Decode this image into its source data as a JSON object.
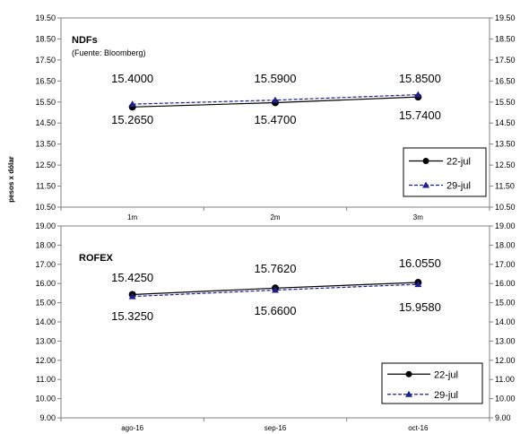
{
  "ylabel": "pesos x dólar",
  "chart_data": [
    {
      "type": "line",
      "title": "NDFs",
      "subtitle": "(Fuente: Bloomberg)",
      "categories": [
        "1m",
        "2m",
        "3m"
      ],
      "ylim": [
        10.5,
        19.5
      ],
      "yticks": [
        "10.50",
        "11.50",
        "12.50",
        "13.50",
        "14.50",
        "15.50",
        "16.50",
        "17.50",
        "18.50",
        "19.50"
      ],
      "grid": false,
      "legend": "bottom-right",
      "series": [
        {
          "name": "22-jul",
          "values": [
            15.265,
            15.47,
            15.74
          ],
          "labels": [
            "15.2650",
            "15.4700",
            "15.7400"
          ],
          "color": "#000000",
          "marker": "circle",
          "dash": "solid"
        },
        {
          "name": "29-jul",
          "values": [
            15.4,
            15.59,
            15.85
          ],
          "labels": [
            "15.4000",
            "15.5900",
            "15.8500"
          ],
          "color": "#1f1f8f",
          "marker": "triangle",
          "dash": "dashed"
        }
      ]
    },
    {
      "type": "line",
      "title": "ROFEX",
      "categories": [
        "ago-16",
        "sep-16",
        "oct-16"
      ],
      "ylim": [
        9.0,
        19.0
      ],
      "yticks": [
        "9.00",
        "10.00",
        "11.00",
        "12.00",
        "13.00",
        "14.00",
        "15.00",
        "16.00",
        "17.00",
        "18.00",
        "19.00"
      ],
      "grid": false,
      "legend": "bottom-right",
      "series": [
        {
          "name": "22-jul",
          "values": [
            15.425,
            15.762,
            16.055
          ],
          "labels": [
            "15.4250",
            "15.7620",
            "16.0550"
          ],
          "color": "#000000",
          "marker": "circle",
          "dash": "solid"
        },
        {
          "name": "29-jul",
          "values": [
            15.325,
            15.66,
            15.958
          ],
          "labels": [
            "15.3250",
            "15.6600",
            "15.9580"
          ],
          "color": "#1f1f8f",
          "marker": "triangle",
          "dash": "dashed"
        }
      ]
    }
  ]
}
